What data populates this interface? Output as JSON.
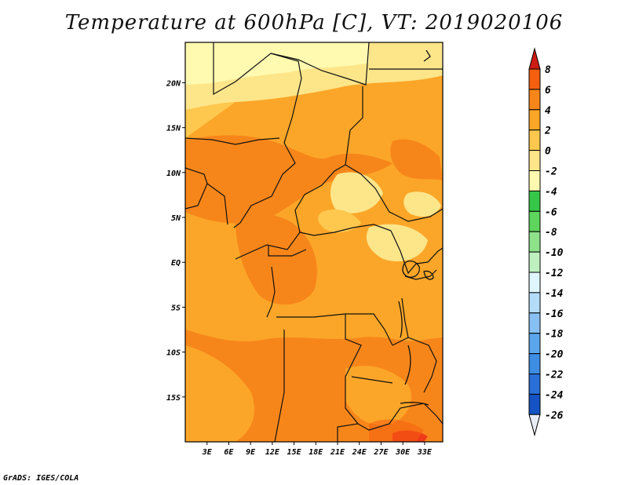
{
  "title": "Temperature at 600hPa [C], VT: 2019020106",
  "credit": "GrADS: IGES/COLA",
  "axes": {
    "lat_labels": [
      "20N",
      "15N",
      "10N",
      "5N",
      "EQ",
      "5S",
      "10S",
      "15S"
    ],
    "lon_labels": [
      "3E",
      "6E",
      "9E",
      "12E",
      "15E",
      "18E",
      "21E",
      "24E",
      "27E",
      "30E",
      "33E"
    ],
    "lat_range": [
      -20,
      24.5
    ],
    "lon_range": [
      0,
      35.5
    ]
  },
  "colorbar": {
    "labels": [
      "8",
      "6",
      "4",
      "2",
      "0",
      "-2",
      "-4",
      "-6",
      "-8",
      "-10",
      "-12",
      "-14",
      "-16",
      "-18",
      "-20",
      "-22",
      "-24",
      "-26"
    ],
    "colors": [
      "#ee3a18",
      "#f65f10",
      "#f7861a",
      "#fba628",
      "#fdc84d",
      "#fde58a",
      "#fffab0",
      "#37c748",
      "#5ed55d",
      "#8ee28a",
      "#bff1c0",
      "#dff6ff",
      "#b4dcf8",
      "#87c1f3",
      "#5ba6ec",
      "#3d8de3",
      "#2a6ed8",
      "#1552c3",
      "#0a2d98",
      "#07156f"
    ],
    "top_color": "#cc1d14",
    "bottom_color": "#e8ecf6"
  }
}
